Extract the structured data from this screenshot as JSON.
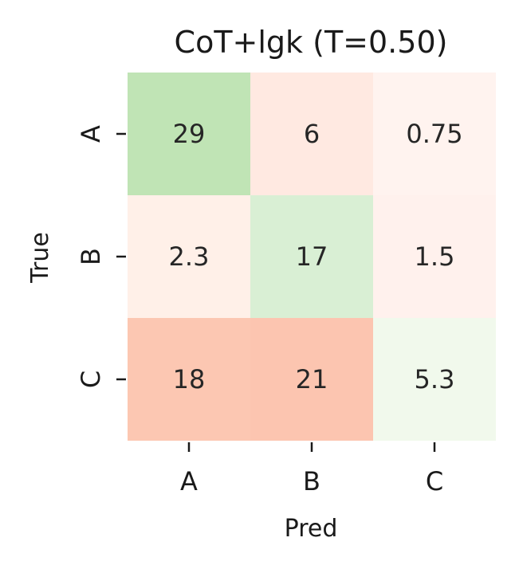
{
  "chart_data": {
    "type": "heatmap",
    "title": "CoT+lgk (T=0.50)",
    "xlabel": "Pred",
    "ylabel": "True",
    "x_categories": [
      "A",
      "B",
      "C"
    ],
    "y_categories": [
      "A",
      "B",
      "C"
    ],
    "values": [
      [
        29,
        6,
        0.75
      ],
      [
        2.3,
        17,
        1.5
      ],
      [
        18,
        21,
        5.3
      ]
    ],
    "cell_labels": [
      [
        "29",
        "6",
        "0.75"
      ],
      [
        "2.3",
        "17",
        "1.5"
      ],
      [
        "18",
        "21",
        "5.3"
      ]
    ],
    "diagonal_colormap": "Greens",
    "off_diagonal_colormap": "Reds",
    "colors": {
      "cells": [
        [
          "#c0e4b5",
          "#ffe9e1",
          "#fff3ef"
        ],
        [
          "#fff0e8",
          "#d9efd4",
          "#fff1ed"
        ],
        [
          "#fcc7b2",
          "#fcc5b0",
          "#f1f9ec"
        ]
      ],
      "text": "#262626"
    },
    "colorbar": false,
    "grid": false
  }
}
